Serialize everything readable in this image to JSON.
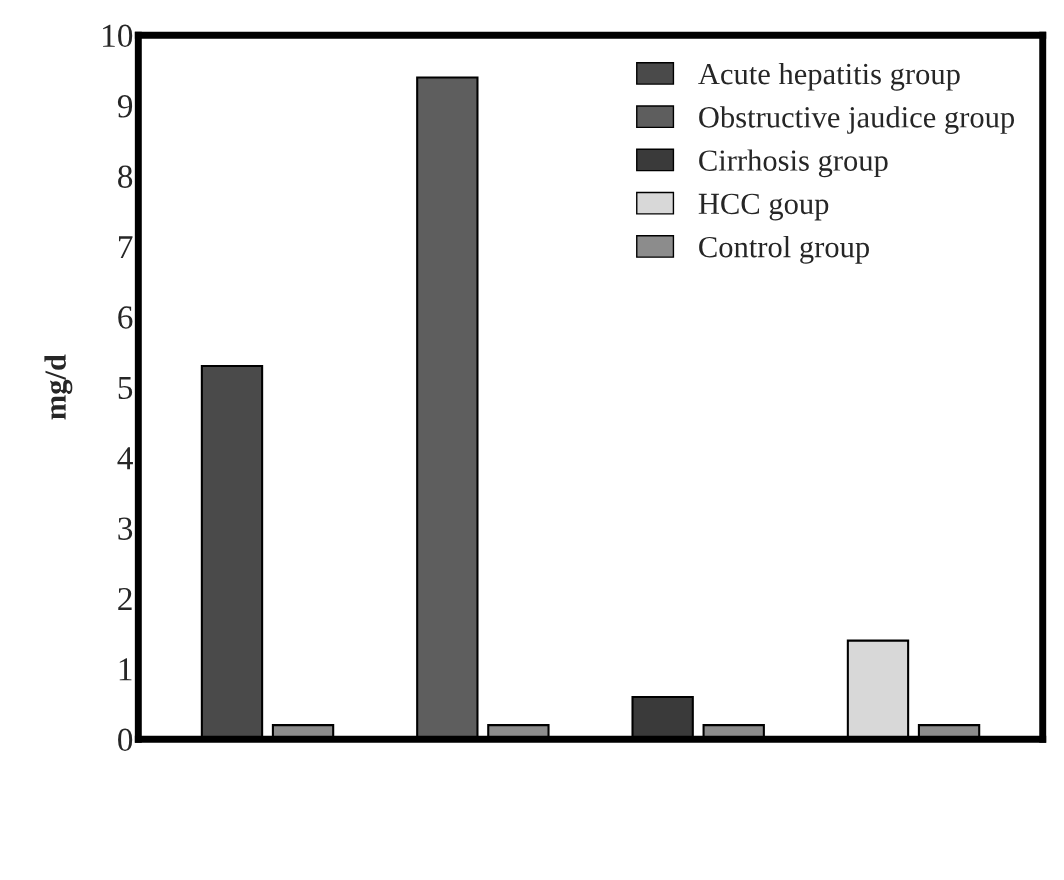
{
  "chart_data": {
    "type": "bar",
    "ylabel": "mg/d",
    "categories": [
      null,
      null,
      null,
      null
    ],
    "series": [
      {
        "name": "Acute hepatitis group",
        "color": "#4a4a4a",
        "values": [
          5.3,
          null,
          null,
          null
        ]
      },
      {
        "name": "Obstructive jaudice group",
        "color": "#5e5e5e",
        "values": [
          null,
          9.4,
          null,
          null
        ]
      },
      {
        "name": "Cirrhosis group",
        "color": "#3a3a3a",
        "values": [
          null,
          null,
          0.6,
          null
        ]
      },
      {
        "name": "HCC goup",
        "color": "#d8d8d8",
        "values": [
          null,
          null,
          null,
          1.4
        ]
      },
      {
        "name": "Control group",
        "color": "#8c8c8c",
        "values": [
          0.2,
          0.2,
          0.2,
          0.2
        ]
      }
    ],
    "ylim": [
      0,
      10
    ],
    "yticks": [
      0,
      1,
      2,
      3,
      4,
      5,
      6,
      7,
      8,
      9,
      10
    ],
    "tick_labels": "y",
    "grid": false,
    "legend": "top right"
  }
}
